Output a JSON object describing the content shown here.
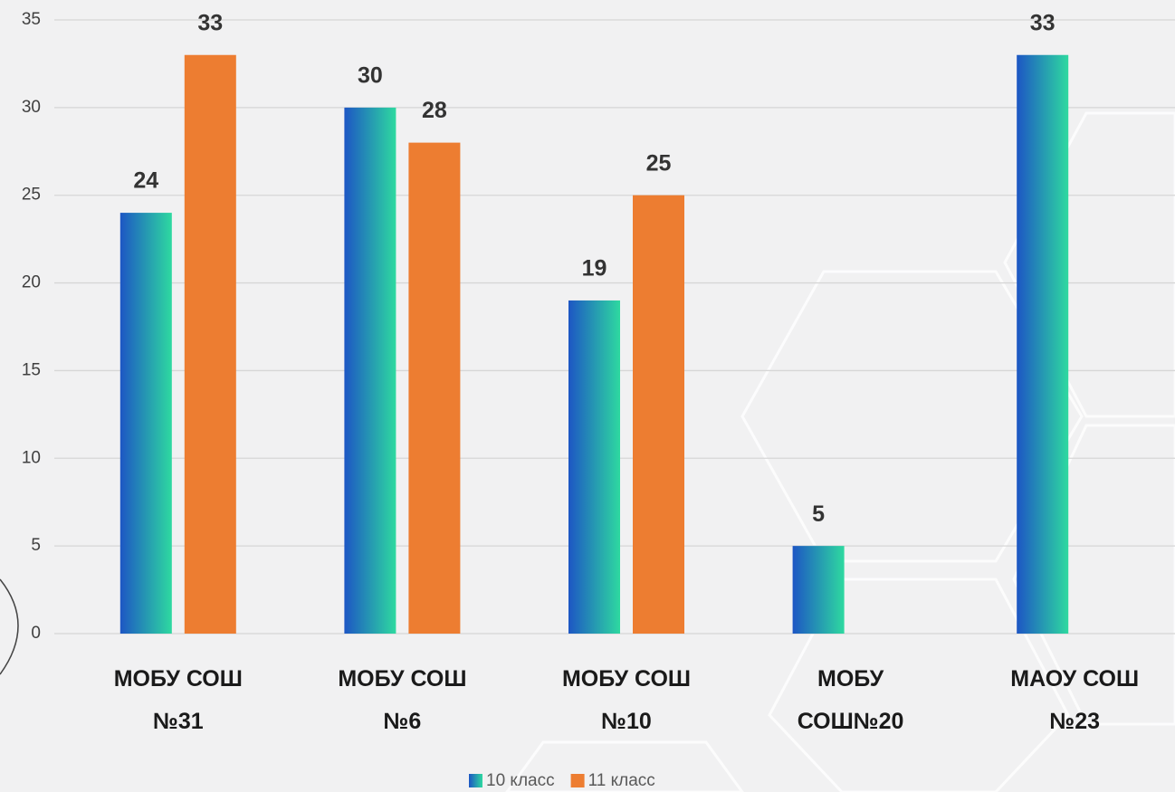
{
  "chart_data": {
    "type": "bar",
    "categories": [
      "МОБУ СОШ\n№31",
      "МОБУ СОШ\n№6",
      "МОБУ СОШ\n№10",
      "МОБУ\nСОШ№20",
      "МАОУ СОШ\n№23"
    ],
    "series": [
      {
        "name": "10 класс",
        "color": [
          "#1d56c4",
          "#2ed9a0"
        ],
        "values": [
          24,
          30,
          19,
          5,
          33
        ]
      },
      {
        "name": "11 класс",
        "color": "#ed7d31",
        "values": [
          33,
          28,
          25,
          null,
          null
        ]
      }
    ],
    "ylim": [
      0,
      35
    ],
    "yticks": [
      0,
      5,
      10,
      15,
      20,
      25,
      30,
      35
    ],
    "grid": true,
    "legend": "bottom"
  }
}
